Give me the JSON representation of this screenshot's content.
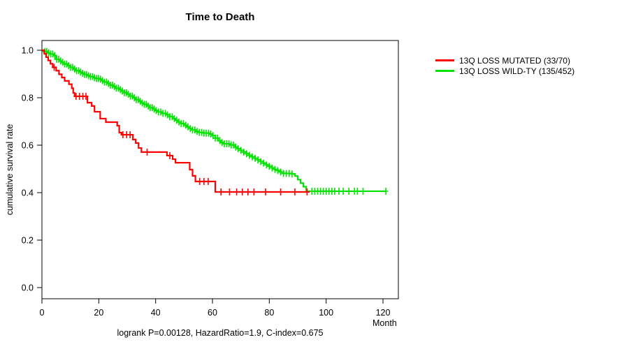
{
  "title": "Time to Death",
  "footer": "logrank P=0.00128, HazardRatio=1.9, C-index=0.675",
  "y_axis": {
    "label": "cumulative survival rate"
  },
  "x_axis": {
    "label": "Month"
  },
  "legend": [
    {
      "label": "13Q LOSS MUTATED (33/70)",
      "color": "#ff0000"
    },
    {
      "label": "13Q LOSS WILD-TY (135/452)",
      "color": "#00e400"
    }
  ],
  "chart_data": {
    "type": "line",
    "subtype": "kaplan-meier-step",
    "title": "Time to Death",
    "xlabel": "Month",
    "ylabel": "cumulative survival rate",
    "xlim": [
      0,
      125
    ],
    "ylim": [
      0,
      1.04
    ],
    "x_ticks": [
      0,
      20,
      40,
      60,
      80,
      100,
      120
    ],
    "y_ticks": [
      0.0,
      0.2,
      0.4,
      0.6,
      0.8,
      1.0
    ],
    "grid": false,
    "legend_position": "right-outside",
    "series": [
      {
        "name": "13Q LOSS WILD-TY (135/452)",
        "color": "#00e400",
        "n_total": 452,
        "n_events": 135,
        "end_month": 121,
        "steps": [
          [
            0,
            1.0
          ],
          [
            1,
            0.995
          ],
          [
            2,
            0.989
          ],
          [
            3,
            0.984
          ],
          [
            4,
            0.978
          ],
          [
            5,
            0.962
          ],
          [
            6,
            0.955
          ],
          [
            7,
            0.949
          ],
          [
            8,
            0.942
          ],
          [
            9,
            0.935
          ],
          [
            10,
            0.928
          ],
          [
            11,
            0.921
          ],
          [
            12,
            0.914
          ],
          [
            13,
            0.908
          ],
          [
            14,
            0.903
          ],
          [
            15,
            0.898
          ],
          [
            16,
            0.893
          ],
          [
            17,
            0.889
          ],
          [
            18,
            0.884
          ],
          [
            19,
            0.881
          ],
          [
            20,
            0.878
          ],
          [
            21,
            0.872
          ],
          [
            22,
            0.866
          ],
          [
            23,
            0.86
          ],
          [
            24,
            0.853
          ],
          [
            25,
            0.847
          ],
          [
            26,
            0.84
          ],
          [
            27,
            0.834
          ],
          [
            28,
            0.828
          ],
          [
            29,
            0.821
          ],
          [
            30,
            0.815
          ],
          [
            31,
            0.807
          ],
          [
            32,
            0.8
          ],
          [
            33,
            0.792
          ],
          [
            34,
            0.785
          ],
          [
            35,
            0.778
          ],
          [
            36,
            0.772
          ],
          [
            37,
            0.765
          ],
          [
            38,
            0.758
          ],
          [
            39,
            0.752
          ],
          [
            40,
            0.746
          ],
          [
            41,
            0.74
          ],
          [
            42,
            0.734
          ],
          [
            44,
            0.728
          ],
          [
            45,
            0.72
          ],
          [
            46,
            0.712
          ],
          [
            47,
            0.705
          ],
          [
            48,
            0.698
          ],
          [
            49,
            0.691
          ],
          [
            50,
            0.684
          ],
          [
            51,
            0.677
          ],
          [
            52,
            0.67
          ],
          [
            53,
            0.664
          ],
          [
            54,
            0.658
          ],
          [
            55,
            0.654
          ],
          [
            57,
            0.651
          ],
          [
            59,
            0.647
          ],
          [
            60,
            0.64
          ],
          [
            61,
            0.63
          ],
          [
            62,
            0.619
          ],
          [
            63,
            0.611
          ],
          [
            64,
            0.606
          ],
          [
            66,
            0.601
          ],
          [
            68,
            0.592
          ],
          [
            69,
            0.585
          ],
          [
            70,
            0.578
          ],
          [
            71,
            0.571
          ],
          [
            72,
            0.564
          ],
          [
            73,
            0.557
          ],
          [
            74,
            0.551
          ],
          [
            75,
            0.545
          ],
          [
            76,
            0.538
          ],
          [
            77,
            0.531
          ],
          [
            78,
            0.524
          ],
          [
            79,
            0.517
          ],
          [
            80,
            0.511
          ],
          [
            81,
            0.504
          ],
          [
            82,
            0.498
          ],
          [
            83,
            0.493
          ],
          [
            84,
            0.487
          ],
          [
            85,
            0.481
          ],
          [
            88,
            0.479
          ],
          [
            89,
            0.47
          ],
          [
            90,
            0.455
          ],
          [
            91,
            0.44
          ],
          [
            92,
            0.425
          ],
          [
            93,
            0.406
          ]
        ],
        "censor_months": [
          1,
          1.7,
          2.4,
          3.1,
          3.8,
          4.5,
          5.2,
          5.9,
          6.6,
          7.3,
          8,
          8.7,
          9.4,
          10.1,
          10.8,
          11.5,
          12.2,
          12.9,
          13.6,
          14.3,
          15,
          15.7,
          16.4,
          17.1,
          17.8,
          18.5,
          19.2,
          19.9,
          20.6,
          21.3,
          22,
          22.7,
          23.4,
          24.1,
          24.8,
          25.5,
          26.2,
          26.9,
          27.6,
          28.3,
          29,
          29.7,
          30.4,
          31.1,
          31.8,
          32.5,
          33.2,
          33.9,
          34.6,
          35.3,
          36,
          36.7,
          37.4,
          38.1,
          38.8,
          39.5,
          40.2,
          41,
          41.8,
          42.6,
          43.4,
          44.2,
          45,
          45.8,
          46.6,
          47.4,
          48.2,
          49,
          49.8,
          50.6,
          51.4,
          52.2,
          53,
          53.8,
          54.6,
          55.4,
          56.2,
          57,
          57.8,
          58.6,
          59.4,
          60.2,
          61,
          61.8,
          62.6,
          63.4,
          64.2,
          65,
          65.8,
          66.6,
          67.4,
          68.2,
          69,
          70,
          71,
          72,
          73,
          74,
          75,
          76,
          77,
          78,
          79,
          80,
          81,
          82,
          83,
          84,
          85,
          86,
          87,
          88,
          95,
          96,
          97,
          98,
          99,
          100,
          101,
          102,
          103,
          104.5,
          106,
          108,
          110,
          111,
          113,
          121
        ]
      },
      {
        "name": "13Q LOSS MUTATED (33/70)",
        "color": "#ff0000",
        "n_total": 70,
        "n_events": 33,
        "end_month": 94.2,
        "steps": [
          [
            0,
            1.0
          ],
          [
            0.8,
            0.986
          ],
          [
            1.5,
            0.971
          ],
          [
            2.2,
            0.957
          ],
          [
            3,
            0.943
          ],
          [
            3.8,
            0.928
          ],
          [
            5,
            0.914
          ],
          [
            6,
            0.899
          ],
          [
            7,
            0.885
          ],
          [
            8,
            0.871
          ],
          [
            9.5,
            0.857
          ],
          [
            10.5,
            0.84
          ],
          [
            11,
            0.82
          ],
          [
            11.5,
            0.806
          ],
          [
            16,
            0.779
          ],
          [
            17.5,
            0.765
          ],
          [
            18.5,
            0.741
          ],
          [
            20.5,
            0.712
          ],
          [
            22.5,
            0.697
          ],
          [
            26.5,
            0.682
          ],
          [
            27.2,
            0.653
          ],
          [
            28,
            0.644
          ],
          [
            32,
            0.624
          ],
          [
            33,
            0.609
          ],
          [
            34,
            0.588
          ],
          [
            35,
            0.571
          ],
          [
            44,
            0.556
          ],
          [
            46,
            0.541
          ],
          [
            47,
            0.526
          ],
          [
            52,
            0.497
          ],
          [
            53,
            0.471
          ],
          [
            54,
            0.447
          ],
          [
            61,
            0.403
          ]
        ],
        "censor_months": [
          4.3,
          12,
          13.2,
          14.4,
          15.5,
          28.5,
          29.8,
          31,
          37,
          45,
          55.5,
          57,
          58.5,
          63,
          66,
          68.5,
          70.5,
          72.5,
          74.6,
          78.7,
          84,
          89,
          93.3
        ]
      }
    ]
  }
}
